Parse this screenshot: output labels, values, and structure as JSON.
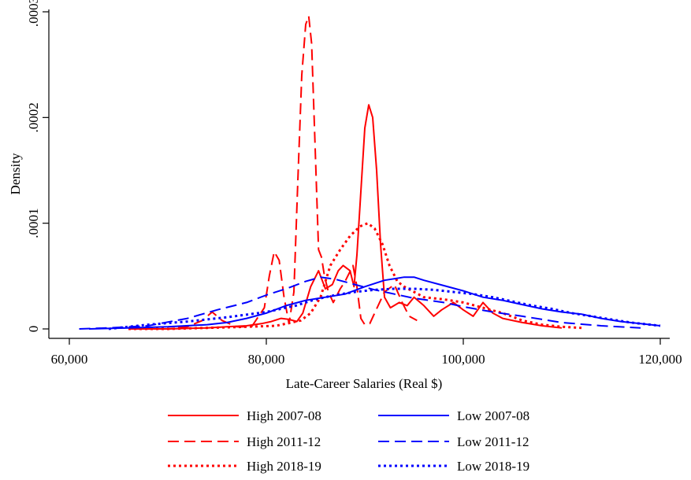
{
  "chart_data": {
    "type": "line",
    "title": "",
    "xlabel": "Late-Career Salaries (Real $)",
    "ylabel": "Density",
    "xlim": [
      60000,
      120000
    ],
    "ylim": [
      0,
      0.0003
    ],
    "x_ticks": [
      60000,
      80000,
      100000,
      120000
    ],
    "x_tick_labels": [
      "60,000",
      "80,000",
      "100,000",
      "120,000"
    ],
    "y_ticks": [
      0,
      0.0001,
      0.0002,
      0.0003
    ],
    "y_tick_labels": [
      "0",
      ".0001",
      ".0002",
      ".0003"
    ],
    "grid": false,
    "legend_position": "bottom",
    "colors": {
      "high": "#ff0000",
      "low": "#0000ff"
    },
    "series": [
      {
        "name": "High 2007-08",
        "color": "#ff0000",
        "dash": "solid",
        "x": [
          66000,
          70000,
          74000,
          76000,
          78000,
          79500,
          80500,
          81500,
          82300,
          83100,
          83700,
          84500,
          85300,
          86000,
          86700,
          87300,
          87800,
          88500,
          88900,
          89200,
          89600,
          90000,
          90400,
          90800,
          91200,
          91600,
          92000,
          92600,
          93500,
          94300,
          95000,
          96000,
          97000,
          97800,
          99000,
          100000,
          101000,
          102000,
          103000,
          104000,
          106000,
          108000,
          110000
        ],
        "y": [
          0,
          0,
          1e-06,
          2e-06,
          3e-06,
          5e-06,
          7e-06,
          1e-05,
          9e-06,
          7e-06,
          1.5e-05,
          4e-05,
          5.5e-05,
          3.8e-05,
          4.2e-05,
          5.5e-05,
          6e-05,
          5.5e-05,
          4e-05,
          7e-05,
          0.00013,
          0.00019,
          0.000212,
          0.0002,
          0.00015,
          8e-05,
          3e-05,
          2e-05,
          2.5e-05,
          2.2e-05,
          3e-05,
          2.2e-05,
          1.2e-05,
          1.8e-05,
          2.5e-05,
          1.8e-05,
          1.2e-05,
          2.5e-05,
          1.5e-05,
          1e-05,
          6e-06,
          3e-06,
          1e-06
        ]
      },
      {
        "name": "High 2011-12",
        "color": "#ff0000",
        "dash": "long",
        "x": [
          66000,
          70000,
          72000,
          73500,
          74500,
          75500,
          77000,
          78500,
          79800,
          80300,
          80800,
          81300,
          81800,
          82300,
          82800,
          83200,
          83600,
          84000,
          84300,
          84600,
          85000,
          85300,
          85600,
          85900,
          86300,
          86800,
          87500,
          88000,
          88800,
          89200,
          89600,
          90000,
          90500,
          91000,
          92000,
          93000,
          93800,
          94500,
          95300
        ],
        "y": [
          0,
          0,
          2e-06,
          8e-06,
          1.6e-05,
          8e-06,
          2e-06,
          2e-06,
          2e-05,
          5e-05,
          7.3e-05,
          6.5e-05,
          3e-05,
          5e-06,
          3.5e-05,
          0.00014,
          0.00024,
          0.000288,
          0.000296,
          0.00027,
          0.00016,
          7.5e-05,
          6.8e-05,
          5e-05,
          3.5e-05,
          2.5e-05,
          3.8e-05,
          4.5e-05,
          6e-05,
          4e-05,
          1e-05,
          4e-06,
          5e-06,
          1.5e-05,
          3.5e-05,
          4.2e-05,
          2.5e-05,
          1.2e-05,
          8e-06
        ]
      },
      {
        "name": "High 2018-19",
        "color": "#ff0000",
        "dash": "dot",
        "x": [
          66000,
          70000,
          74000,
          78000,
          81000,
          83500,
          84500,
          85500,
          86500,
          87500,
          88500,
          89500,
          90300,
          91000,
          91800,
          92500,
          93300,
          94000,
          95000,
          96000,
          98000,
          100000,
          102000,
          104000,
          106000,
          108000,
          110000,
          112000
        ],
        "y": [
          0,
          0,
          1e-06,
          2e-06,
          3e-06,
          8e-06,
          1.5e-05,
          3e-05,
          6e-05,
          7.5e-05,
          8.8e-05,
          9.7e-05,
          0.0001,
          9.5e-05,
          8e-05,
          6e-05,
          4.5e-05,
          4e-05,
          3.5e-05,
          3e-05,
          2.8e-05,
          2.5e-05,
          2e-05,
          1.5e-05,
          8e-06,
          4e-06,
          2e-06,
          1e-06
        ]
      },
      {
        "name": "Low 2007-08",
        "color": "#0000ff",
        "dash": "solid",
        "x": [
          62000,
          66000,
          70000,
          74000,
          76000,
          78000,
          80000,
          82000,
          84000,
          86000,
          88000,
          90000,
          92000,
          94000,
          95000,
          96000,
          98000,
          100000,
          102000,
          104000,
          106000,
          108000,
          110000,
          112000,
          114000,
          116000,
          118000,
          120000
        ],
        "y": [
          0,
          1e-06,
          2e-06,
          4e-06,
          6e-06,
          1e-05,
          1.5e-05,
          2.2e-05,
          2.7e-05,
          3e-05,
          3.3e-05,
          4e-05,
          4.6e-05,
          4.9e-05,
          4.9e-05,
          4.6e-05,
          4.1e-05,
          3.6e-05,
          3e-05,
          2.7e-05,
          2.3e-05,
          1.9e-05,
          1.6e-05,
          1.4e-05,
          1e-05,
          7e-06,
          5e-06,
          3e-06
        ]
      },
      {
        "name": "Low 2011-12",
        "color": "#0000ff",
        "dash": "long",
        "x": [
          61000,
          64000,
          68000,
          72000,
          75000,
          78000,
          80000,
          82000,
          84000,
          85500,
          87000,
          89000,
          91000,
          93000,
          95000,
          98000,
          100000,
          103000,
          106000,
          110000,
          114000,
          118000
        ],
        "y": [
          0,
          1e-06,
          3e-06,
          1e-05,
          1.8e-05,
          2.5e-05,
          3.2e-05,
          3.8e-05,
          4.5e-05,
          4.9e-05,
          4.7e-05,
          4.2e-05,
          3.7e-05,
          3.3e-05,
          2.9e-05,
          2.5e-05,
          2.1e-05,
          1.6e-05,
          1.2e-05,
          6e-06,
          3e-06,
          1e-06
        ]
      },
      {
        "name": "Low 2018-19",
        "color": "#0000ff",
        "dash": "dot",
        "x": [
          64000,
          68000,
          72000,
          76000,
          80000,
          83000,
          85000,
          87000,
          89000,
          91000,
          93000,
          95000,
          97000,
          99000,
          101000,
          103000,
          105000,
          107000,
          109000,
          111000,
          113000,
          115000,
          117000,
          120000
        ],
        "y": [
          0,
          4e-06,
          7e-06,
          1.1e-05,
          1.6e-05,
          2.2e-05,
          2.8e-05,
          3.2e-05,
          3.5e-05,
          3.7e-05,
          3.8e-05,
          3.8e-05,
          3.7e-05,
          3.5e-05,
          3.3e-05,
          3e-05,
          2.6e-05,
          2.2e-05,
          1.9e-05,
          1.5e-05,
          1.2e-05,
          9e-06,
          6e-06,
          3e-06
        ]
      }
    ]
  }
}
